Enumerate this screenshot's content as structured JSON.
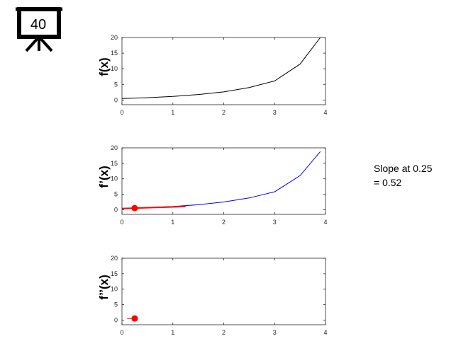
{
  "logo": {
    "text": "40"
  },
  "annotation": {
    "line1": "Slope at 0.25",
    "line2": "= 0.52"
  },
  "colors": {
    "f": "#000000",
    "fprime": "#0000ff",
    "highlight": "#ff0000"
  },
  "chart_data": [
    {
      "type": "line",
      "ylabel": "f(x)",
      "xlim": [
        0,
        4
      ],
      "ylim": [
        -1.5,
        20
      ],
      "xticks": [
        0,
        1,
        2,
        3,
        4
      ],
      "yticks": [
        0,
        5,
        10,
        15,
        20
      ],
      "series": [
        {
          "color": "#000000",
          "x": [
            0,
            0.5,
            1,
            1.5,
            2,
            2.5,
            3,
            3.5,
            3.9
          ],
          "y": [
            0.5,
            0.75,
            1.15,
            1.75,
            2.6,
            4.0,
            6.1,
            11.5,
            20
          ]
        }
      ]
    },
    {
      "type": "line",
      "ylabel": "f’(x)",
      "xlim": [
        0,
        4
      ],
      "ylim": [
        -1.5,
        20
      ],
      "xticks": [
        0,
        1,
        2,
        3,
        4
      ],
      "yticks": [
        0,
        5,
        10,
        15,
        20
      ],
      "series": [
        {
          "color": "#0000ff",
          "x": [
            0,
            0.5,
            1,
            1.5,
            2,
            2.5,
            3,
            3.5,
            3.9
          ],
          "y": [
            0.45,
            0.7,
            1.05,
            1.6,
            2.5,
            3.8,
            5.8,
            11.0,
            18.8
          ]
        }
      ],
      "tangent_line": {
        "color": "#ff0000",
        "x": [
          0,
          1.25
        ],
        "y": [
          0.39,
          1.04
        ]
      },
      "marker": {
        "color": "#ff0000",
        "x": 0.25,
        "y": 0.52
      }
    },
    {
      "type": "line",
      "ylabel": "f’’(x)",
      "xlim": [
        0,
        4
      ],
      "ylim": [
        -1.5,
        20
      ],
      "xticks": [
        0,
        1,
        2,
        3,
        4
      ],
      "yticks": [
        0,
        5,
        10,
        15,
        20
      ],
      "series": [
        {
          "color": "#ff0000",
          "x": [
            0.1,
            0.25
          ],
          "y": [
            0.52,
            0.52
          ]
        }
      ],
      "marker": {
        "color": "#ff0000",
        "x": 0.25,
        "y": 0.52
      }
    }
  ]
}
